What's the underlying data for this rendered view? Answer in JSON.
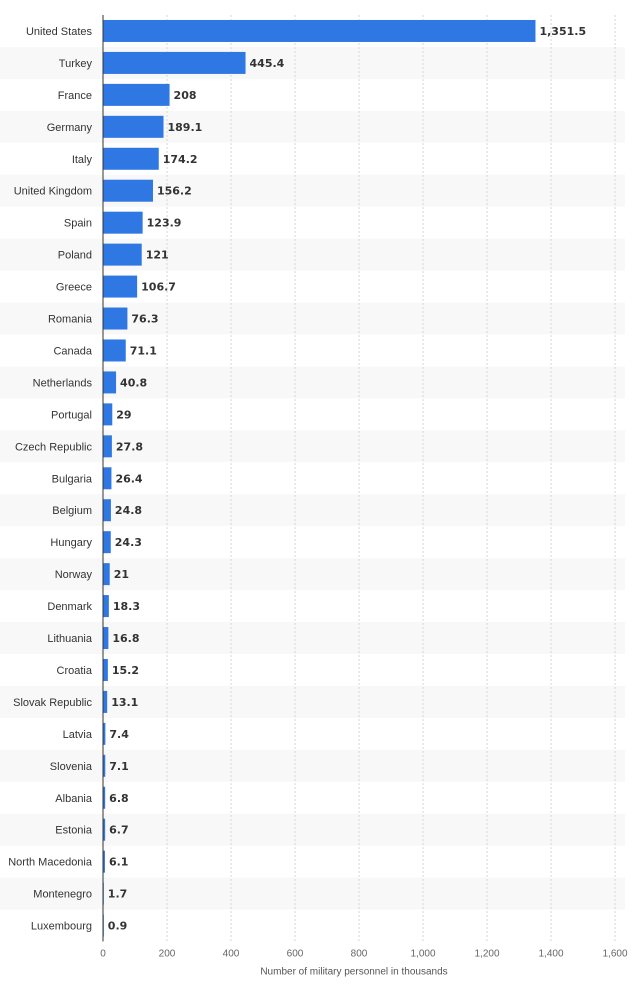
{
  "chart_data": {
    "type": "bar",
    "orientation": "horizontal",
    "categories": [
      "United States",
      "Turkey",
      "France",
      "Germany",
      "Italy",
      "United Kingdom",
      "Spain",
      "Poland",
      "Greece",
      "Romania",
      "Canada",
      "Netherlands",
      "Portugal",
      "Czech Republic",
      "Bulgaria",
      "Belgium",
      "Hungary",
      "Norway",
      "Denmark",
      "Lithuania",
      "Croatia",
      "Slovak Republic",
      "Latvia",
      "Slovenia",
      "Albania",
      "Estonia",
      "North Macedonia",
      "Montenegro",
      "Luxembourg"
    ],
    "values": [
      1351.5,
      445.4,
      208,
      189.1,
      174.2,
      156.2,
      123.9,
      121,
      106.7,
      76.3,
      71.1,
      40.8,
      29,
      27.8,
      26.4,
      24.8,
      24.3,
      21,
      18.3,
      16.8,
      15.2,
      13.1,
      7.4,
      7.1,
      6.8,
      6.7,
      6.1,
      1.7,
      0.9
    ],
    "value_labels": [
      "1,351.5",
      "445.4",
      "208",
      "189.1",
      "174.2",
      "156.2",
      "123.9",
      "121",
      "106.7",
      "76.3",
      "71.1",
      "40.8",
      "29",
      "27.8",
      "26.4",
      "24.8",
      "24.3",
      "21",
      "18.3",
      "16.8",
      "15.2",
      "13.1",
      "7.4",
      "7.1",
      "6.8",
      "6.7",
      "6.1",
      "1.7",
      "0.9"
    ],
    "xlabel": "Number of military personnel in thousands",
    "xlim": [
      0,
      1600
    ],
    "xticks": [
      0,
      200,
      400,
      600,
      800,
      1000,
      1200,
      1400,
      1600
    ],
    "xtick_labels": [
      "0",
      "200",
      "400",
      "600",
      "800",
      "1,000",
      "1,200",
      "1,400",
      "1,600"
    ],
    "grid": "vertical-dashed",
    "row_stripes": true,
    "bar_color": "#2f78e3"
  }
}
